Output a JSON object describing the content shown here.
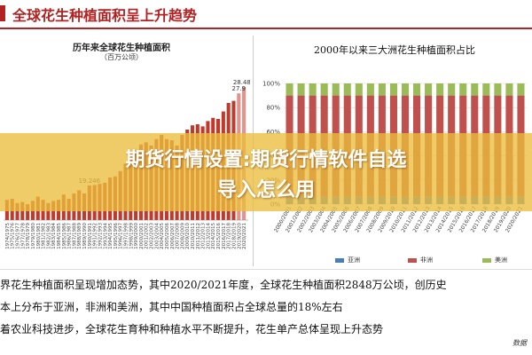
{
  "header": {
    "title": "全球花生种植面积呈上升趋势",
    "accent_color": "#b22222"
  },
  "left_chart_text": {
    "title": "历年来全球花生种植面积",
    "unit": "（百万公顷）"
  },
  "right_chart_text": {
    "title": "2000年以来三大洲花生种植面积占比"
  },
  "chart_data": [
    {
      "type": "bar",
      "title": "历年来全球花生种植面积",
      "ylabel": "（百万公顷）",
      "categories": [
        "1974/1975",
        "1975/1976",
        "1976/1977",
        "1977/1978",
        "1978/1979",
        "1979/1980",
        "1980/1981",
        "1981/1982",
        "1982/1983",
        "1983/1984",
        "1984/1985",
        "1985/1986",
        "1986/1987",
        "1987/1988",
        "1988/1989",
        "1989/1990",
        "1990/1991",
        "1991/1992",
        "1992/1993",
        "1993/1994",
        "1994/1995",
        "1995/1996",
        "1996/1997",
        "1997/1998",
        "1998/1999",
        "1999/2000",
        "2000/2001",
        "2001/2002",
        "2002/2003",
        "2003/2004",
        "2004/2005",
        "2005/2006",
        "2006/2007",
        "2007/2008",
        "2008/2009",
        "2009/2010",
        "2010/2011",
        "2011/2012",
        "2012/2013",
        "2013/2014",
        "2014/2015",
        "2015/2016",
        "2016/2017",
        "2017/2018",
        "2018/2019",
        "2019/2020",
        "2020/2021"
      ],
      "values": [
        17.9,
        18.0,
        17.6,
        17.7,
        17.5,
        17.8,
        18.2,
        17.9,
        17.6,
        17.8,
        17.9,
        18.4,
        18.0,
        18.5,
        18.8,
        18.5,
        19.246,
        19.3,
        19.4,
        19.5,
        20.0,
        20.1,
        20.6,
        21.3,
        22.0,
        22.5,
        23.1,
        23.3,
        23.0,
        23.6,
        24.0,
        23.6,
        23.5,
        23.0,
        24.0,
        24.5,
        24.9,
        25.0,
        24.8,
        25.3,
        25.6,
        25.5,
        26.2,
        27.0,
        27.2,
        27.9,
        28.485
      ],
      "data_labels": [
        {
          "category": "1990/1991",
          "text": "19.246"
        },
        {
          "category": "2019/2020",
          "text": "27.9"
        },
        {
          "category": "2020/2021",
          "text": "28.485"
        }
      ],
      "ylim": [
        16,
        30
      ],
      "colors": {
        "bar": "#c0392b",
        "bar_highlight": "#e8908a"
      },
      "grid": false
    },
    {
      "type": "bar",
      "stacked": true,
      "title": "2000年以来三大洲花生种植面积占比",
      "categories": [
        "2000/2001",
        "2001/2002",
        "2002/2003",
        "2003/2004",
        "2004/2005",
        "2005/2006",
        "2006/2007",
        "2007/2008",
        "2008/2009",
        "2009/2010",
        "2010/2011",
        "2011/2012",
        "2012/2013",
        "2013/2014",
        "2014/2015",
        "2015/2016",
        "2016/2017",
        "2017/2018",
        "2018/2019",
        "2019/2020",
        "2020/2021"
      ],
      "series": [
        {
          "name": "亚洲",
          "color": "#4a7ebb",
          "values": [
            6,
            6,
            6,
            6,
            6,
            6,
            6,
            6,
            6,
            6,
            6,
            6,
            6,
            6,
            6,
            6,
            6,
            6,
            6,
            6,
            6
          ]
        },
        {
          "name": "非洲",
          "color": "#c0504d",
          "values": [
            84,
            84,
            84,
            84,
            84,
            84,
            84,
            84,
            84,
            84,
            84,
            84,
            84,
            84,
            84,
            84,
            84,
            84,
            84,
            84,
            84
          ]
        },
        {
          "name": "美洲",
          "color": "#9bbb59",
          "values": [
            10,
            10,
            10,
            10,
            10,
            10,
            10,
            10,
            10,
            10,
            10,
            10,
            10,
            10,
            10,
            10,
            10,
            10,
            10,
            10,
            10
          ]
        }
      ],
      "y_ticks": [
        "100%",
        "80%",
        "60%",
        "40%",
        "20%",
        "0%"
      ],
      "ylim": [
        0,
        100
      ],
      "legend_position": "bottom"
    }
  ],
  "overlay": {
    "line1": "期货行情设置:期货行情软件自选",
    "line2": "导入怎么用"
  },
  "body_text": {
    "line1": "界花生种植面积呈现增加态势，其中2020/2021年度，全球花生种植面积2848万公顷，创历史",
    "line2": "本上分布于亚洲，非洲和美洲，其中中国种植面积占全球总量的18%左右",
    "line3": "着农业科技进步，全球花生育种和种植水平不断提升，花生单产总体呈现上升态势"
  },
  "source_note": "数据"
}
